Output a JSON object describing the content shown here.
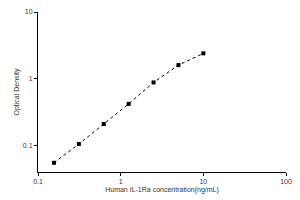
{
  "chart_data": {
    "type": "line",
    "x_label": "Human IL-1Ra concentration(ng/mL)",
    "y_label": "Optical Density",
    "x": [
      0.156,
      0.312,
      0.625,
      1.25,
      2.5,
      5,
      10
    ],
    "values": [
      0.055,
      0.105,
      0.21,
      0.42,
      0.88,
      1.6,
      2.4
    ],
    "color": "#000000",
    "marker": "square",
    "line_style": "dotted",
    "log": true,
    "grid": false,
    "xlim": [
      0.1,
      100
    ],
    "xticks": [
      0.1,
      1,
      10,
      100
    ],
    "ylim": [
      0.04,
      10
    ],
    "yticks": [
      0.1,
      1,
      10
    ]
  }
}
